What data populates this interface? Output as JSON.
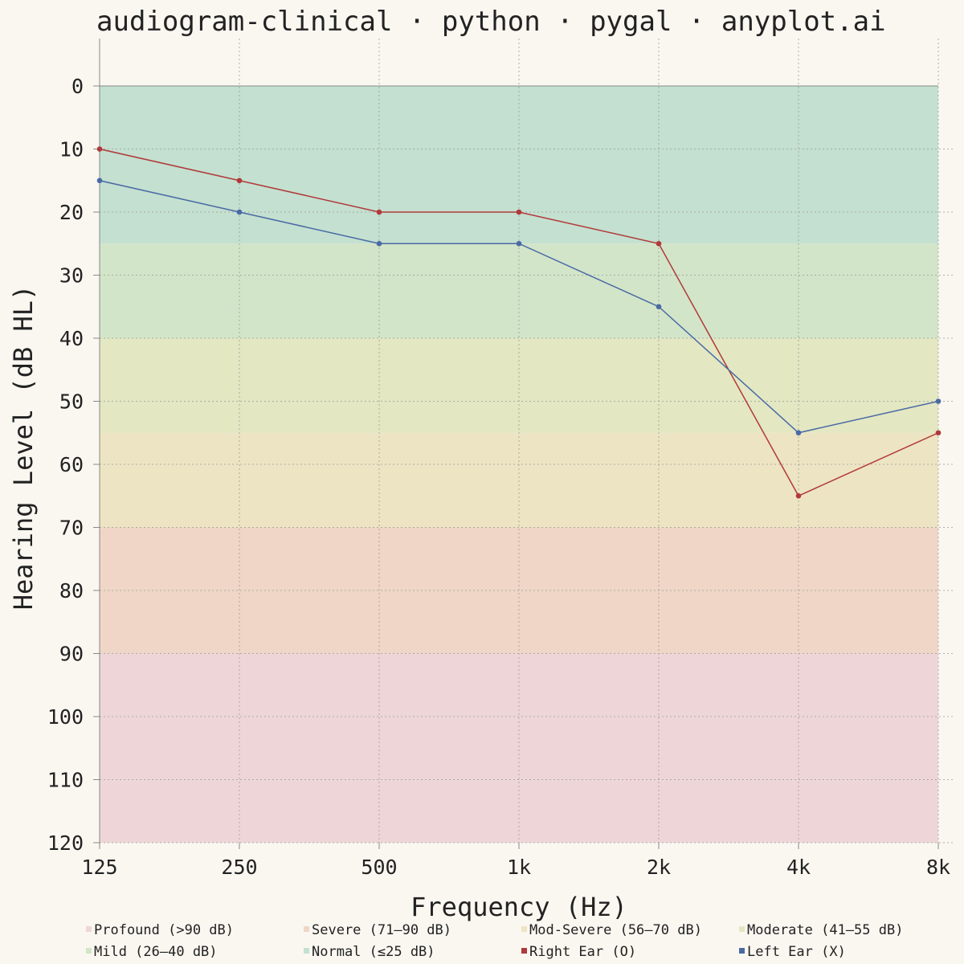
{
  "chart_data": {
    "type": "line",
    "title": "audiogram-clinical · python · pygal · anyplot.ai",
    "xlabel": "Frequency (Hz)",
    "ylabel": "Hearing Level (dB HL)",
    "x": [
      125,
      250,
      500,
      1000,
      2000,
      4000,
      8000
    ],
    "x_tick_labels": [
      "125",
      "250",
      "500",
      "1k",
      "2k",
      "4k",
      "8k"
    ],
    "x_scale": "log",
    "ylim": [
      0,
      120
    ],
    "y_inverted": true,
    "y_ticks": [
      0,
      10,
      20,
      30,
      40,
      50,
      60,
      70,
      80,
      90,
      100,
      110,
      120
    ],
    "grid": true,
    "legend_position": "bottom",
    "bands": [
      {
        "name": "Profound (>90 dB)",
        "from": 90,
        "to": 120,
        "color": "#eed6d8"
      },
      {
        "name": "Severe (71–90 dB)",
        "from": 70,
        "to": 90,
        "color": "#efd6c6"
      },
      {
        "name": "Mod-Severe (56–70 dB)",
        "from": 55,
        "to": 70,
        "color": "#ede4c3"
      },
      {
        "name": "Moderate (41–55 dB)",
        "from": 40,
        "to": 55,
        "color": "#e3e7c2"
      },
      {
        "name": "Mild (26–40 dB)",
        "from": 25,
        "to": 40,
        "color": "#d2e5c8"
      },
      {
        "name": "Normal (≤25 dB)",
        "from": 0,
        "to": 25,
        "color": "#c4e0d0"
      }
    ],
    "series": [
      {
        "name": "Right Ear (O)",
        "color": "#b03a3a",
        "values": [
          10,
          15,
          20,
          20,
          25,
          65,
          55
        ]
      },
      {
        "name": "Left Ear (X)",
        "color": "#4a6aa5",
        "values": [
          15,
          20,
          25,
          25,
          35,
          55,
          50
        ]
      }
    ]
  }
}
